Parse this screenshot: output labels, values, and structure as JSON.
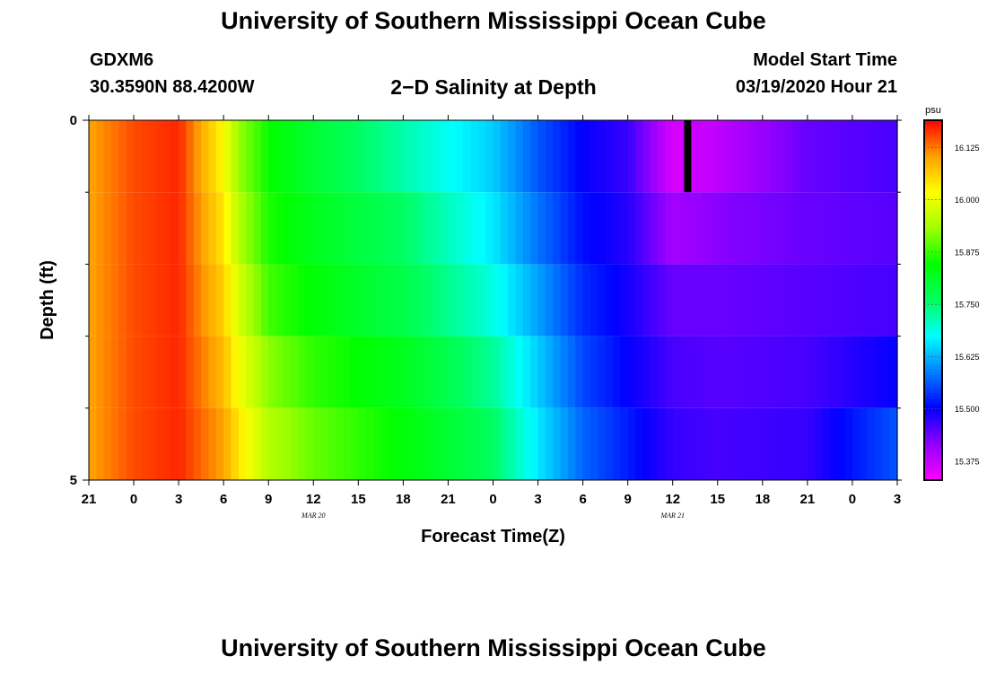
{
  "header": {
    "title": "University of Southern Mississippi Ocean Cube",
    "station": "GDXM6",
    "coords": "30.3590N 88.4200W",
    "plot_title": "2−D Salinity at Depth",
    "model_start_label": "Model Start Time",
    "model_start_value": "03/19/2020 Hour 21"
  },
  "footer": {
    "title": "University of Southern Mississippi Ocean Cube"
  },
  "chart_data": {
    "type": "heatmap",
    "title": "2−D Salinity at Depth",
    "xlabel": "Forecast Time(Z)",
    "ylabel": "Depth (ft)",
    "x_tick_labels": [
      "21",
      "0",
      "3",
      "6",
      "9",
      "12",
      "15",
      "18",
      "21",
      "0",
      "3",
      "6",
      "9",
      "12",
      "15",
      "18",
      "21",
      "0",
      "3"
    ],
    "x_hours_from_start": [
      0,
      3,
      6,
      9,
      12,
      15,
      18,
      21,
      24,
      27,
      30,
      33,
      36,
      39,
      42,
      45,
      48,
      51,
      54
    ],
    "x_range_hours": [
      0,
      54
    ],
    "date_labels": [
      {
        "label": "MAR 20",
        "hour": 15
      },
      {
        "label": "MAR 21",
        "hour": 39
      }
    ],
    "y_range": [
      0,
      5
    ],
    "y_tick_labels": [
      "0",
      "5"
    ],
    "y_minor_ticks": [
      1,
      2,
      3,
      4
    ],
    "depth_layers": [
      0,
      1,
      2,
      3,
      4
    ],
    "colorbar": {
      "unit": "psu",
      "range": [
        15.33,
        16.19
      ],
      "ticks": [
        "16.125",
        "16.000",
        "15.875",
        "15.750",
        "15.625",
        "15.500",
        "15.375"
      ],
      "colors": [
        "#ff00ff",
        "#9000ff",
        "#0000ff",
        "#0080ff",
        "#00ffff",
        "#00ff60",
        "#00ff00",
        "#a0ff00",
        "#ffff00",
        "#ffa000",
        "#ff0000"
      ]
    },
    "layer_profiles": [
      {
        "depth": "0-1",
        "hours": [
          0,
          3,
          6,
          9,
          10,
          12,
          15,
          21,
          27,
          30,
          33,
          36,
          39,
          42,
          48,
          54
        ],
        "values": [
          16.1,
          16.15,
          16.17,
          16.02,
          15.93,
          15.85,
          15.8,
          15.72,
          15.64,
          15.56,
          15.5,
          15.47,
          15.36,
          15.38,
          15.44,
          15.46
        ]
      },
      {
        "depth": "1-2",
        "hours": [
          0,
          3,
          6,
          9,
          10,
          12,
          15,
          21,
          27,
          30,
          33,
          36,
          39,
          42,
          48,
          54
        ],
        "values": [
          16.1,
          16.15,
          16.17,
          16.04,
          15.95,
          15.86,
          15.82,
          15.76,
          15.66,
          15.58,
          15.51,
          15.48,
          15.4,
          15.42,
          15.44,
          15.45
        ]
      },
      {
        "depth": "2-3",
        "hours": [
          0,
          3,
          6,
          9,
          10,
          12,
          15,
          21,
          27,
          30,
          33,
          36,
          39,
          42,
          48,
          54
        ],
        "values": [
          16.1,
          16.15,
          16.17,
          16.06,
          15.98,
          15.88,
          15.84,
          15.78,
          15.69,
          15.61,
          15.53,
          15.49,
          15.44,
          15.44,
          15.45,
          15.46
        ]
      },
      {
        "depth": "3-4",
        "hours": [
          0,
          3,
          6,
          9,
          10,
          12,
          15,
          21,
          27,
          30,
          33,
          36,
          39,
          42,
          48,
          54
        ],
        "values": [
          16.1,
          16.15,
          16.17,
          16.08,
          16.01,
          15.92,
          15.87,
          15.82,
          15.73,
          15.64,
          15.55,
          15.5,
          15.46,
          15.45,
          15.46,
          15.5
        ]
      },
      {
        "depth": "4-5",
        "hours": [
          0,
          3,
          6,
          9,
          10,
          12,
          15,
          21,
          27,
          30,
          33,
          36,
          39,
          42,
          48,
          54
        ],
        "values": [
          16.1,
          16.15,
          16.17,
          16.1,
          16.04,
          15.95,
          15.9,
          15.84,
          15.76,
          15.66,
          15.57,
          15.52,
          15.47,
          15.46,
          15.47,
          15.56
        ]
      }
    ],
    "marker": {
      "hour": 40,
      "depth_top": 0,
      "depth_bottom": 1,
      "color": "#000000"
    }
  }
}
